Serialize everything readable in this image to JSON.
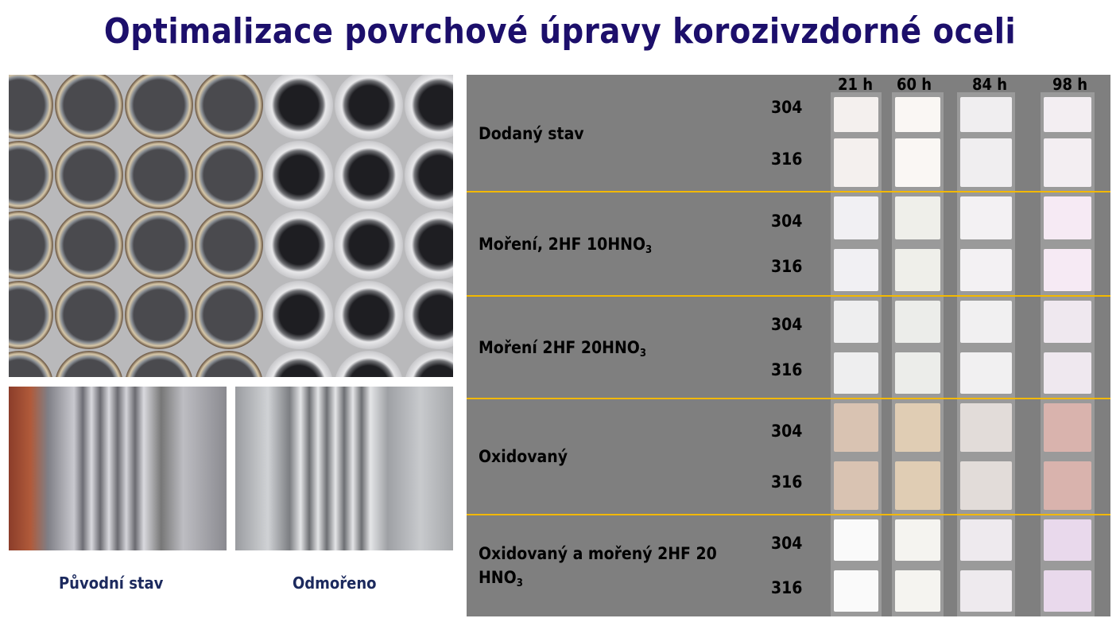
{
  "title": "Optimalizace povrchové úpravy korozivzdorné oceli",
  "photos": {
    "caption_left": "Původní stav",
    "caption_right": "Odmořeno"
  },
  "table": {
    "columns": [
      "21 h",
      "60 h",
      "84 h",
      "98 h"
    ],
    "alloys": [
      "304",
      "316"
    ],
    "rows": [
      {
        "label": "Dodaný stav",
        "sub": ""
      },
      {
        "label": "Moření, 2HF 10HNO",
        "sub": "3"
      },
      {
        "label": "Moření 2HF 20HNO",
        "sub": "3"
      },
      {
        "label": "Oxidovaný",
        "sub": ""
      },
      {
        "label": "Oxidovaný a mořený 2HF 20 HNO",
        "sub": "3"
      }
    ],
    "separator_color": "#f2b800",
    "background_color": "#7f7f7f"
  }
}
